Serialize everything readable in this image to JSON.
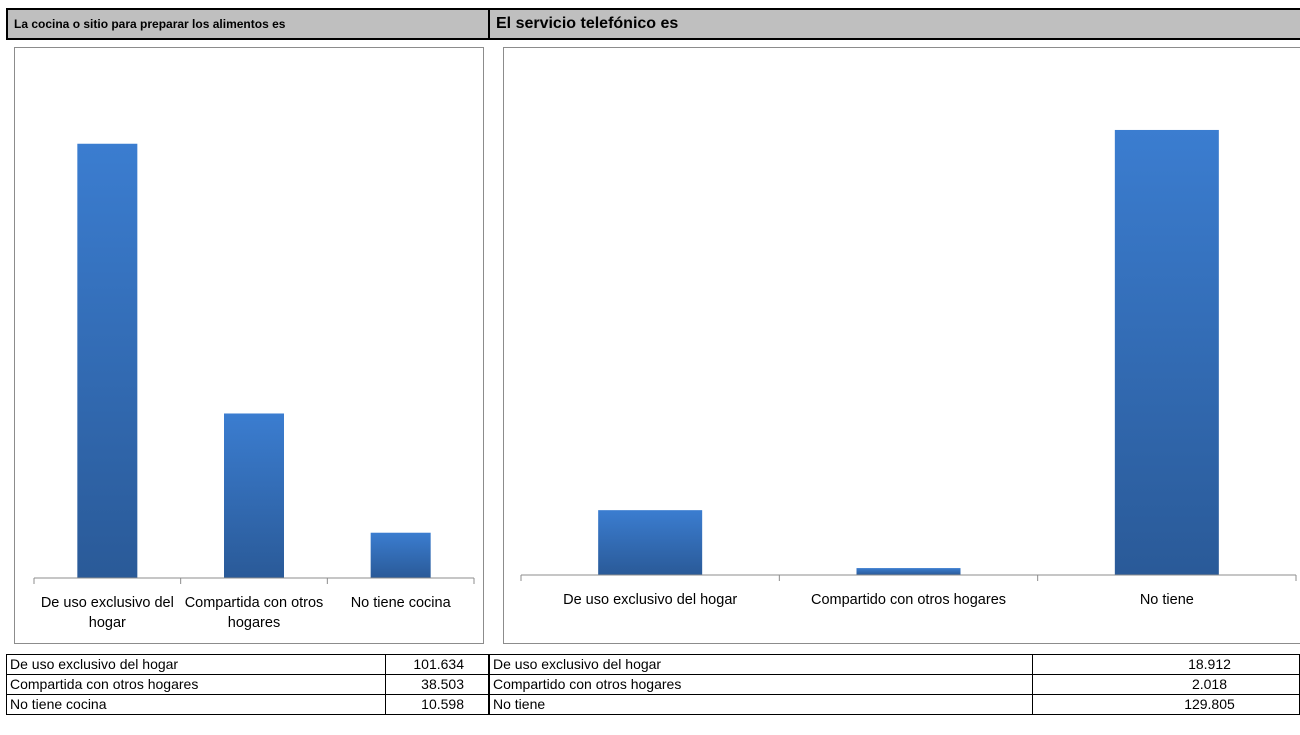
{
  "panels": [
    {
      "header": "La cocina o sitio para preparar los alimentos es",
      "chart_data": {
        "type": "bar",
        "categories": [
          "De uso exclusivo del hogar",
          "Compartida con otros hogares",
          "No tiene cocina"
        ],
        "tick_lines": [
          [
            "De uso exclusivo del",
            "hogar"
          ],
          [
            "Compartida con otros",
            "hogares"
          ],
          [
            "No tiene cocina"
          ]
        ],
        "values": [
          101634,
          38503,
          10598
        ],
        "ylim": [
          0,
          110000
        ],
        "grid": false,
        "legend": "none"
      },
      "table": [
        {
          "label": "De uso exclusivo del hogar",
          "value": "101.634"
        },
        {
          "label": "Compartida con otros hogares",
          "value": "38.503"
        },
        {
          "label": "No tiene cocina",
          "value": "10.598"
        }
      ]
    },
    {
      "header": "El servicio telefónico es",
      "chart_data": {
        "type": "bar",
        "categories": [
          "De uso exclusivo del hogar",
          "Compartido con otros hogares",
          "No tiene"
        ],
        "tick_lines": [
          [
            "De uso exclusivo del hogar"
          ],
          [
            "Compartido con otros hogares"
          ],
          [
            "No tiene"
          ]
        ],
        "values": [
          18912,
          2018,
          129805
        ],
        "ylim": [
          0,
          140000
        ],
        "grid": false,
        "legend": "none"
      },
      "table": [
        {
          "label": "De uso exclusivo del hogar",
          "value": "18.912"
        },
        {
          "label": "Compartido con otros hogares",
          "value": "2.018"
        },
        {
          "label": "No tiene",
          "value": "129.805"
        }
      ]
    }
  ],
  "colors": {
    "bar_top": "#3b7dd0",
    "bar_bottom": "#2a5a98",
    "axis": "#8c8c8c",
    "header_bg": "#bfbfbf"
  }
}
